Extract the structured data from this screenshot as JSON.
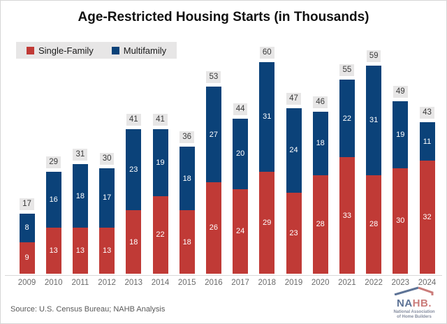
{
  "title": "Age-Restricted Housing Starts (in Thousands)",
  "legend": {
    "items": [
      {
        "label": "Single-Family",
        "color": "#c03a36"
      },
      {
        "label": "Multifamily",
        "color": "#0b4279"
      }
    ]
  },
  "chart_data": {
    "type": "bar",
    "stacked": true,
    "title": "Age-Restricted Housing Starts (in Thousands)",
    "xlabel": "",
    "ylabel": "",
    "grid": false,
    "legend_position": "top-left",
    "data_labels": true,
    "label_box_color": "#e7e6e6",
    "categories": [
      "2009",
      "2010",
      "2011",
      "2012",
      "2013",
      "2014",
      "2015",
      "2016",
      "2017",
      "2018",
      "2019",
      "2020",
      "2021",
      "2022",
      "2023",
      "2024"
    ],
    "series": [
      {
        "name": "Single-Family",
        "color": "#c03a36",
        "values": [
          9,
          13,
          13,
          13,
          18,
          22,
          18,
          26,
          24,
          29,
          23,
          28,
          33,
          28,
          30,
          32
        ]
      },
      {
        "name": "Multifamily",
        "color": "#0b4279",
        "values": [
          8,
          16,
          18,
          17,
          23,
          19,
          18,
          27,
          20,
          31,
          24,
          18,
          22,
          31,
          19,
          11
        ]
      }
    ],
    "totals": [
      17,
      29,
      31,
      30,
      41,
      41,
      36,
      53,
      44,
      60,
      47,
      46,
      55,
      59,
      49,
      43
    ],
    "ylim": [
      0,
      65
    ]
  },
  "footer": {
    "source": "Source: U.S. Census Bureau; NAHB Analysis"
  },
  "logo": {
    "part1": "NA",
    "part2": "HB.",
    "subtitle1": "National Association",
    "subtitle2": "of Home Builders"
  }
}
